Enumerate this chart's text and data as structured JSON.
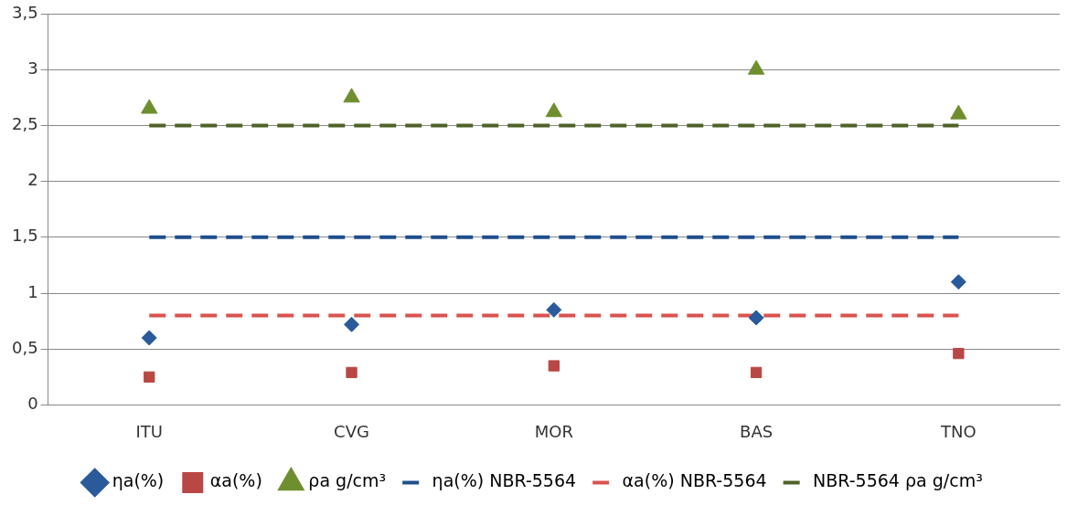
{
  "chart_data": {
    "type": "scatter",
    "categories": [
      "ITU",
      "CVG",
      "MOR",
      "BAS",
      "TNO"
    ],
    "series": [
      {
        "name": "ηa(%)",
        "color": "#2a5a9a",
        "values": [
          0.6,
          0.72,
          0.85,
          0.78,
          1.1
        ],
        "marker": "diamond"
      },
      {
        "name": "αa(%)",
        "color": "#b94744",
        "values": [
          0.25,
          0.29,
          0.35,
          0.29,
          0.46
        ],
        "marker": "square"
      },
      {
        "name": "ρa g/cm³",
        "color": "#6f8f2f",
        "values": [
          2.65,
          2.75,
          2.62,
          3.0,
          2.6
        ],
        "marker": "triangle"
      },
      {
        "name": "ηa(%) NBR-5564",
        "type": "line",
        "line_style": "dashed",
        "marker": "none",
        "color": "#1f4e8c",
        "values": [
          1.5,
          1.5,
          1.5,
          1.5,
          1.5
        ]
      },
      {
        "name": "αa(%) NBR-5564",
        "type": "line",
        "line_style": "dashed",
        "marker": "none",
        "color": "#d9534f",
        "values": [
          0.8,
          0.8,
          0.8,
          0.8,
          0.8
        ]
      },
      {
        "name": "NBR-5564 ρa g/cm³",
        "type": "line",
        "line_style": "dashed",
        "marker": "none",
        "color": "#4f6228",
        "values": [
          2.5,
          2.5,
          2.5,
          2.5,
          2.5
        ]
      }
    ],
    "ylim": [
      0,
      3.5
    ],
    "yticks": [
      0,
      {
        "value": 0.5,
        "label": "0,5"
      },
      1,
      {
        "value": 1.5,
        "label": "1,5"
      },
      2,
      {
        "value": 2.5,
        "label": "2,5"
      },
      3,
      {
        "value": 3.5,
        "label": "3,5"
      }
    ],
    "grid": "y",
    "legend": "bottom"
  }
}
